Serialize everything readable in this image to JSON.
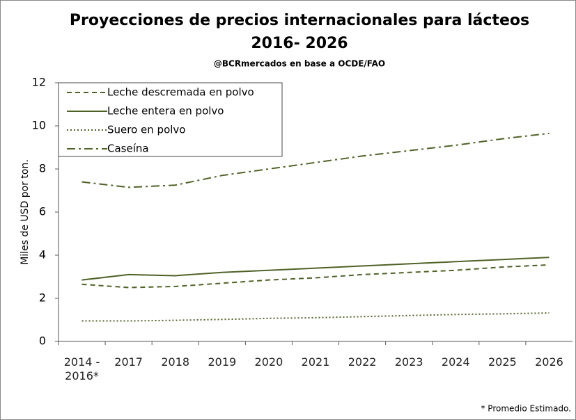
{
  "chart_data": {
    "type": "line",
    "title": [
      "Proyecciones de precios internacionales para lácteos",
      "2016- 2026"
    ],
    "subtitle": "@BCRmercados en base a OCDE/FAO",
    "y_label": "Miles de USD por ton.",
    "footnote": "* Promedio Estimado.",
    "categories": [
      "2014 - 2016*",
      "2017",
      "2018",
      "2019",
      "2020",
      "2021",
      "2022",
      "2023",
      "2024",
      "2025",
      "2026"
    ],
    "series": [
      {
        "name": "Leche descremada en polvo",
        "color": "#4f6228",
        "dash": "7,5",
        "values": [
          2.65,
          2.5,
          2.55,
          2.7,
          2.85,
          2.95,
          3.1,
          3.2,
          3.3,
          3.45,
          3.55
        ]
      },
      {
        "name": "Leche entera en polvo",
        "color": "#4f6228",
        "dash": "none",
        "values": [
          2.85,
          3.1,
          3.05,
          3.2,
          3.3,
          3.4,
          3.5,
          3.6,
          3.7,
          3.8,
          3.9
        ]
      },
      {
        "name": "Suero en polvo",
        "color": "#4f6228",
        "dash": "2,3",
        "values": [
          0.95,
          0.95,
          0.98,
          1.02,
          1.07,
          1.1,
          1.15,
          1.2,
          1.25,
          1.28,
          1.32
        ]
      },
      {
        "name": "Caseína",
        "color": "#4f6228",
        "dash": "12,5,3,5",
        "values": [
          7.4,
          7.15,
          7.25,
          7.7,
          8.0,
          8.3,
          8.6,
          8.85,
          9.1,
          9.4,
          9.65
        ]
      }
    ],
    "ylim": [
      0,
      12
    ],
    "yticks": [
      0,
      2,
      4,
      6,
      8,
      10,
      12
    ],
    "legend": "upper left"
  }
}
